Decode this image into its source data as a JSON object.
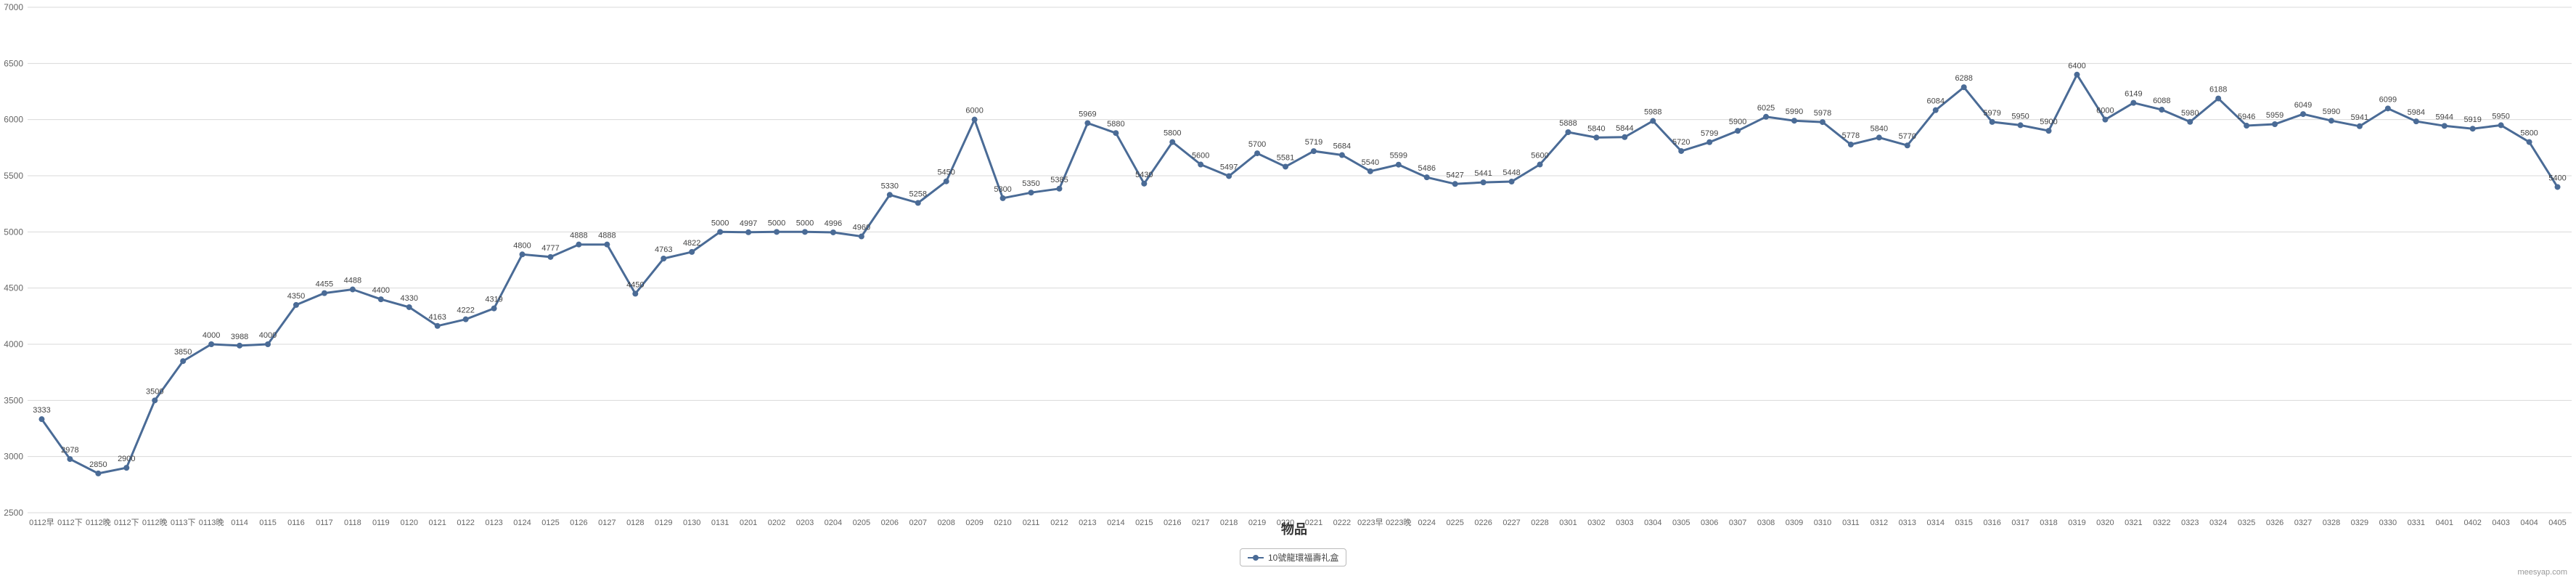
{
  "chart_data": {
    "type": "line",
    "title": "",
    "xlabel": "物品",
    "ylabel": "",
    "ylim": [
      2500,
      7000
    ],
    "yticks": [
      2500,
      3000,
      3500,
      4000,
      4500,
      5000,
      5500,
      6000,
      6500,
      7000
    ],
    "grid": true,
    "legend_position": "bottom-center",
    "series_color": "#4a6b96",
    "categories": [
      "0112早",
      "0112下",
      "0112晚",
      "0112下",
      "0112晚",
      "0113下",
      "0113晚",
      "0114",
      "0115",
      "0116",
      "0117",
      "0118",
      "0119",
      "0120",
      "0121",
      "0122",
      "0123",
      "0124",
      "0125",
      "0126",
      "0127",
      "0128",
      "0129",
      "0130",
      "0131",
      "0201",
      "0202",
      "0203",
      "0204",
      "0205",
      "0206",
      "0207",
      "0208",
      "0209",
      "0210",
      "0211",
      "0212",
      "0213",
      "0214",
      "0215",
      "0216",
      "0217",
      "0218",
      "0219",
      "0220",
      "0221",
      "0222",
      "0223早",
      "0223晚",
      "0224",
      "0225",
      "0226",
      "0227",
      "0228",
      "0301",
      "0302",
      "0303",
      "0304",
      "0305",
      "0306",
      "0307",
      "0308",
      "0309",
      "0310",
      "0311",
      "0312",
      "0313",
      "0314",
      "0315",
      "0316",
      "0317",
      "0318",
      "0319",
      "0320",
      "0321",
      "0322",
      "0323",
      "0324",
      "0325",
      "0326",
      "0327",
      "0328",
      "0329",
      "0330",
      "0331",
      "0401",
      "0402",
      "0403",
      "0404",
      "0405"
    ],
    "series": [
      {
        "name": "10號龍環福壽礼盒",
        "values": [
          3333,
          2978,
          2850,
          2900,
          3500,
          3850,
          4000,
          3988,
          4000,
          4350,
          4455,
          4488,
          4400,
          4330,
          4163,
          4222,
          4319,
          4800,
          4777,
          4888,
          4888,
          4450,
          4763,
          4822,
          5000,
          4997,
          5000,
          5000,
          4996,
          4960,
          5330,
          5258,
          5450,
          6000,
          5300,
          5350,
          5385,
          5969,
          5880,
          5430,
          5800,
          5600,
          5497,
          5700,
          5581,
          5719,
          5684,
          5540,
          5599,
          5486,
          5427,
          5441,
          5448,
          5600,
          5888,
          5840,
          5844,
          5988,
          5720,
          5799,
          5900,
          6025,
          5990,
          5978,
          5778,
          5840,
          5770,
          6084,
          6288,
          5979,
          5950,
          5900,
          6400,
          6000,
          6149,
          6088,
          5980,
          6188,
          5946,
          5959,
          6049,
          5990,
          5941,
          6099,
          5984,
          5944,
          5919,
          5950,
          5800,
          5400
        ]
      }
    ]
  },
  "watermark": "meesyap.com"
}
